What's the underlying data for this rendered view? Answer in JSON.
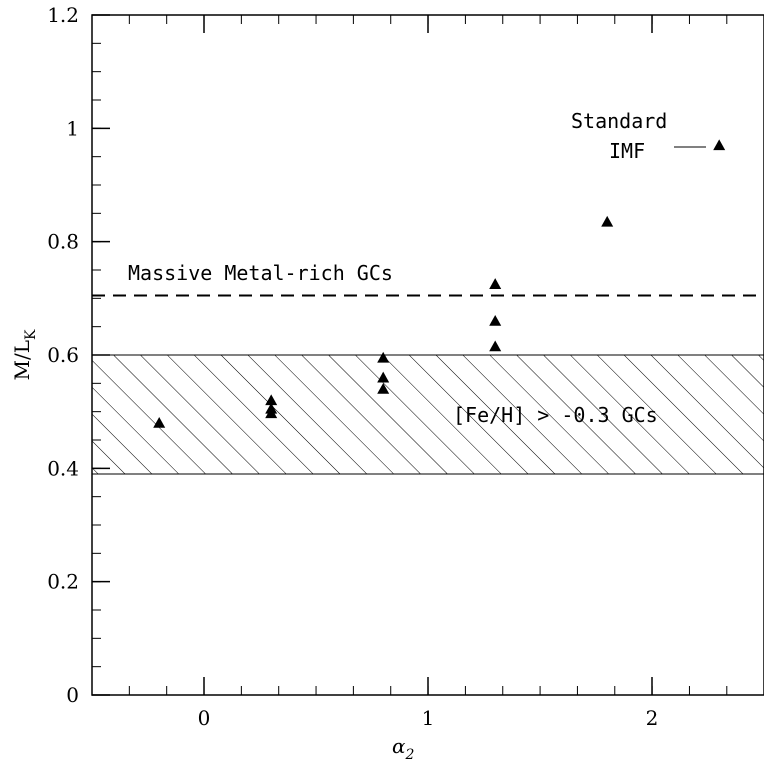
{
  "chart_data": {
    "type": "scatter",
    "xlabel_main": "α",
    "xlabel_sub": "2",
    "ylabel_main": "M/L",
    "ylabel_sub": "K",
    "xlim": [
      -0.5,
      2.5
    ],
    "ylim": [
      0,
      1.2
    ],
    "xticks": [
      0,
      1,
      2
    ],
    "xtick_labels": [
      "0",
      "1",
      "2"
    ],
    "yticks": [
      0,
      0.2,
      0.4,
      0.6,
      0.8,
      1.0,
      1.2
    ],
    "ytick_labels": [
      "0",
      "0.2",
      "0.4",
      "0.6",
      "0.8",
      "1",
      "1.2"
    ],
    "x_minor_step": 0.1667,
    "y_minor_step": 0.05,
    "points": [
      {
        "x": -0.2,
        "y": 0.48
      },
      {
        "x": 0.3,
        "y": 0.52
      },
      {
        "x": 0.3,
        "y": 0.505
      },
      {
        "x": 0.3,
        "y": 0.497
      },
      {
        "x": 0.8,
        "y": 0.595
      },
      {
        "x": 0.8,
        "y": 0.56
      },
      {
        "x": 0.8,
        "y": 0.54
      },
      {
        "x": 1.3,
        "y": 0.725
      },
      {
        "x": 1.3,
        "y": 0.66
      },
      {
        "x": 1.3,
        "y": 0.615
      },
      {
        "x": 1.8,
        "y": 0.835
      },
      {
        "x": 2.3,
        "y": 0.97
      }
    ],
    "dashed_line": {
      "y": 0.705,
      "label": "Massive Metal-rich GCs"
    },
    "hatched_band": {
      "y_min": 0.39,
      "y_max": 0.6,
      "label": "[Fe/H] > -0.3 GCs"
    },
    "standard_imf": {
      "line1": "Standard",
      "line2": "IMF",
      "y": 0.97
    }
  }
}
